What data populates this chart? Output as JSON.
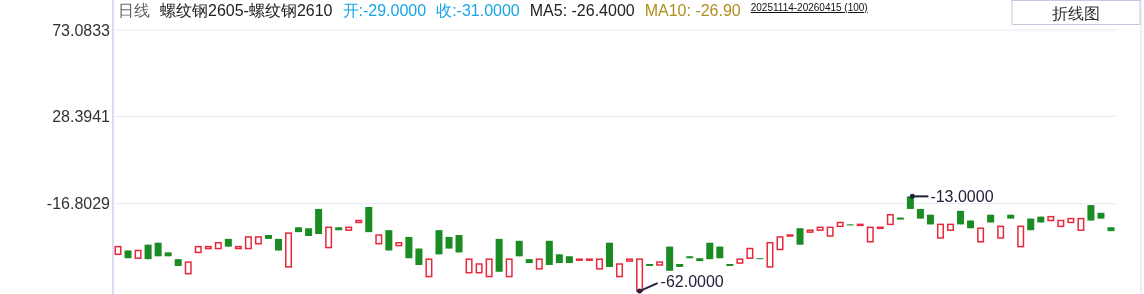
{
  "chart_data": {
    "type": "candlestick",
    "title": "日线",
    "subtitle": "螺纹钢2605-螺纹钢2610",
    "annotations": [
      "开:-29.0000",
      "收:-31.0000",
      "MA5: -26.4000",
      "MA10: -26.90",
      "20251114-20260415 (100)",
      "折线图",
      "-13.0000",
      "-62.0000"
    ],
    "categories": [
      null,
      null,
      null,
      null,
      null,
      null,
      null,
      null,
      null,
      null,
      null,
      null,
      null,
      null,
      null,
      null,
      null,
      null,
      null,
      null,
      null,
      null,
      null,
      null,
      null,
      null,
      null,
      null,
      null,
      null,
      null,
      null,
      null,
      null,
      null,
      null,
      null,
      null,
      null,
      null,
      null,
      null,
      null,
      null,
      null,
      null,
      null,
      null,
      null,
      null,
      null,
      null,
      null,
      null,
      null,
      null,
      null,
      null,
      null,
      null,
      null,
      null,
      null,
      null,
      null,
      null,
      null,
      null,
      null,
      null,
      null,
      null,
      null,
      null,
      null,
      null,
      null,
      null,
      null,
      null,
      null,
      null,
      null,
      null,
      null,
      null,
      null,
      null,
      null,
      null,
      null,
      null,
      null,
      null,
      null,
      null,
      null,
      null,
      null,
      null
    ],
    "ohlc": [
      [
        -43,
        -39,
        -43,
        -39
      ],
      [
        -41,
        -41,
        -45,
        -45
      ],
      [
        -45,
        -41,
        -45,
        -41
      ],
      [
        -38,
        -38,
        -45.5,
        -45.5
      ],
      [
        -37,
        -37,
        -44,
        -44
      ],
      [
        -42,
        -42,
        -44,
        -44
      ],
      [
        -45.5,
        -45.5,
        -49,
        -49
      ],
      [
        -53,
        -47,
        -53,
        -47
      ],
      [
        -42,
        -39,
        -42,
        -39
      ],
      [
        -40,
        -39,
        -40,
        -39
      ],
      [
        -40,
        -37,
        -40,
        -37
      ],
      [
        -35,
        -35,
        -39,
        -39
      ],
      [
        -40,
        -39,
        -40,
        -39
      ],
      [
        -40,
        -34,
        -40,
        -34
      ],
      [
        -37.5,
        -34,
        -37.5,
        -34
      ],
      [
        -33,
        -33,
        -35,
        -35
      ],
      [
        -35,
        -35,
        -41,
        -41
      ],
      [
        -49.5,
        -32,
        -49.5,
        -32
      ],
      [
        -29,
        -29,
        -31.5,
        -31.5
      ],
      [
        -29.5,
        -29.5,
        -33.5,
        -33.5
      ],
      [
        -19.5,
        -19.5,
        -32.5,
        -32.5
      ],
      [
        -39.5,
        -29,
        -39.5,
        -29
      ],
      [
        -29,
        -29,
        -30.5,
        -30.5
      ],
      [
        -30.5,
        -29,
        -30.5,
        -29
      ],
      [
        -26.5,
        -25.5,
        -26.5,
        -25.5
      ],
      [
        -18.5,
        -18.5,
        -31.5,
        -31.5
      ],
      [
        -37.5,
        -33,
        -37.5,
        -33
      ],
      [
        -30.5,
        -30.5,
        -41,
        -41
      ],
      [
        -38.5,
        -37,
        -38.5,
        -37
      ],
      [
        -34,
        -34,
        -45,
        -45
      ],
      [
        -40,
        -40,
        -48.5,
        -48.5
      ],
      [
        -54.5,
        -45.5,
        -54.5,
        -45.5
      ],
      [
        -30.5,
        -30.5,
        -43,
        -43
      ],
      [
        -34,
        -34,
        -40,
        -40
      ],
      [
        -33,
        -33,
        -42,
        -42
      ],
      [
        -52.5,
        -45.5,
        -52.5,
        -45.5
      ],
      [
        -52.5,
        -48,
        -52.5,
        -48
      ],
      [
        -54.5,
        -45.5,
        -54.5,
        -45.5
      ],
      [
        -35,
        -35,
        -52,
        -52
      ],
      [
        -54.5,
        -45.5,
        -54.5,
        -45.5
      ],
      [
        -36,
        -36,
        -44,
        -44
      ],
      [
        -45.5,
        -45.5,
        -47.5,
        -47.5
      ],
      [
        -50.5,
        -45.5,
        -50.5,
        -45.5
      ],
      [
        -36,
        -36,
        -48.5,
        -48.5
      ],
      [
        -43,
        -43,
        -47.5,
        -47.5
      ],
      [
        -44,
        -44,
        -47.5,
        -47.5
      ],
      [
        -45.5,
        -45.5,
        -45.5,
        -45.5
      ],
      [
        -45.5,
        -45.5,
        -45.5,
        -45.5
      ],
      [
        -50.5,
        -45.5,
        -50.5,
        -45.5
      ],
      [
        -37,
        -37,
        -49.5,
        -49.5
      ],
      [
        -54.5,
        -48,
        -54.5,
        -48
      ],
      [
        -46.5,
        -45.5,
        -46.5,
        -45.5
      ],
      [
        -62,
        -45.5,
        -62,
        -45.5
      ],
      [
        -48,
        -48,
        -49,
        -49
      ],
      [
        -48.5,
        -47,
        -48.5,
        -47
      ],
      [
        -39,
        -39,
        -51.5,
        -51.5
      ],
      [
        -48,
        -48,
        -49.5,
        -49.5
      ],
      [
        -44,
        -44,
        -45,
        -45
      ],
      [
        -45,
        -45,
        -46.5,
        -46.5
      ],
      [
        -37,
        -37,
        -45.5,
        -45.5
      ],
      [
        -39,
        -39,
        -45,
        -45
      ],
      [
        -48,
        -48,
        -49,
        -49
      ],
      [
        -47.5,
        -45.5,
        -47.5,
        -45.5
      ],
      [
        -45,
        -40,
        -45,
        -40
      ],
      [
        -45,
        -45,
        -45.5,
        -45.5
      ],
      [
        -49.5,
        -37,
        -49.5,
        -37
      ],
      [
        -40.5,
        -34,
        -40.5,
        -34
      ],
      [
        -33.5,
        -33,
        -33.5,
        -33
      ],
      [
        -29.5,
        -29.5,
        -38,
        -38
      ],
      [
        -31.5,
        -30.5,
        -31.5,
        -30.5
      ],
      [
        -30.5,
        -29,
        -30.5,
        -29
      ],
      [
        -33.5,
        -29,
        -33.5,
        -29
      ],
      [
        -28.5,
        -26.5,
        -28.5,
        -26.5
      ],
      [
        -27.5,
        -27.5,
        -28,
        -28
      ],
      [
        -28,
        -27.5,
        -28,
        -27.5
      ],
      [
        -36.5,
        -29,
        -36.5,
        -29
      ],
      [
        -29.5,
        -29,
        -29.5,
        -29
      ],
      [
        -27.5,
        -22.5,
        -27.5,
        -22.5
      ],
      [
        -24,
        -24,
        -25,
        -25
      ],
      [
        -13,
        -13,
        -19.5,
        -19.5
      ],
      [
        -19.5,
        -19.5,
        -24.5,
        -24.5
      ],
      [
        -22.5,
        -22.5,
        -27.5,
        -27.5
      ],
      [
        -34.5,
        -27.5,
        -34.5,
        -27.5
      ],
      [
        -30.5,
        -27.5,
        -30.5,
        -27.5
      ],
      [
        -20.5,
        -20.5,
        -27.5,
        -27.5
      ],
      [
        -25.5,
        -25.5,
        -29.5,
        -29.5
      ],
      [
        -36.5,
        -29.5,
        -36.5,
        -29.5
      ],
      [
        -22.5,
        -22.5,
        -26.5,
        -26.5
      ],
      [
        -34.5,
        -28.5,
        -34.5,
        -28.5
      ],
      [
        -22.5,
        -22.5,
        -24.5,
        -24.5
      ],
      [
        -39,
        -28.5,
        -39,
        -28.5
      ],
      [
        -24.5,
        -24.5,
        -30.5,
        -30.5
      ],
      [
        -23.5,
        -23.5,
        -26.5,
        -26.5
      ],
      [
        -25.5,
        -23.5,
        -25.5,
        -23.5
      ],
      [
        -28.5,
        -25.5,
        -28.5,
        -25.5
      ],
      [
        -26.5,
        -24.5,
        -26.5,
        -24.5
      ],
      [
        -30.5,
        -24.5,
        -30.5,
        -24.5
      ],
      [
        -17.5,
        -17.5,
        -25.5,
        -25.5
      ],
      [
        -21.5,
        -21.5,
        -24.5,
        -24.5
      ],
      [
        -29,
        -29,
        -31,
        -31
      ]
    ],
    "ylim": [
      -63,
      73.0833
    ],
    "yticks": [
      73.0833,
      28.3941,
      -16.8029
    ],
    "grid": "y"
  }
}
